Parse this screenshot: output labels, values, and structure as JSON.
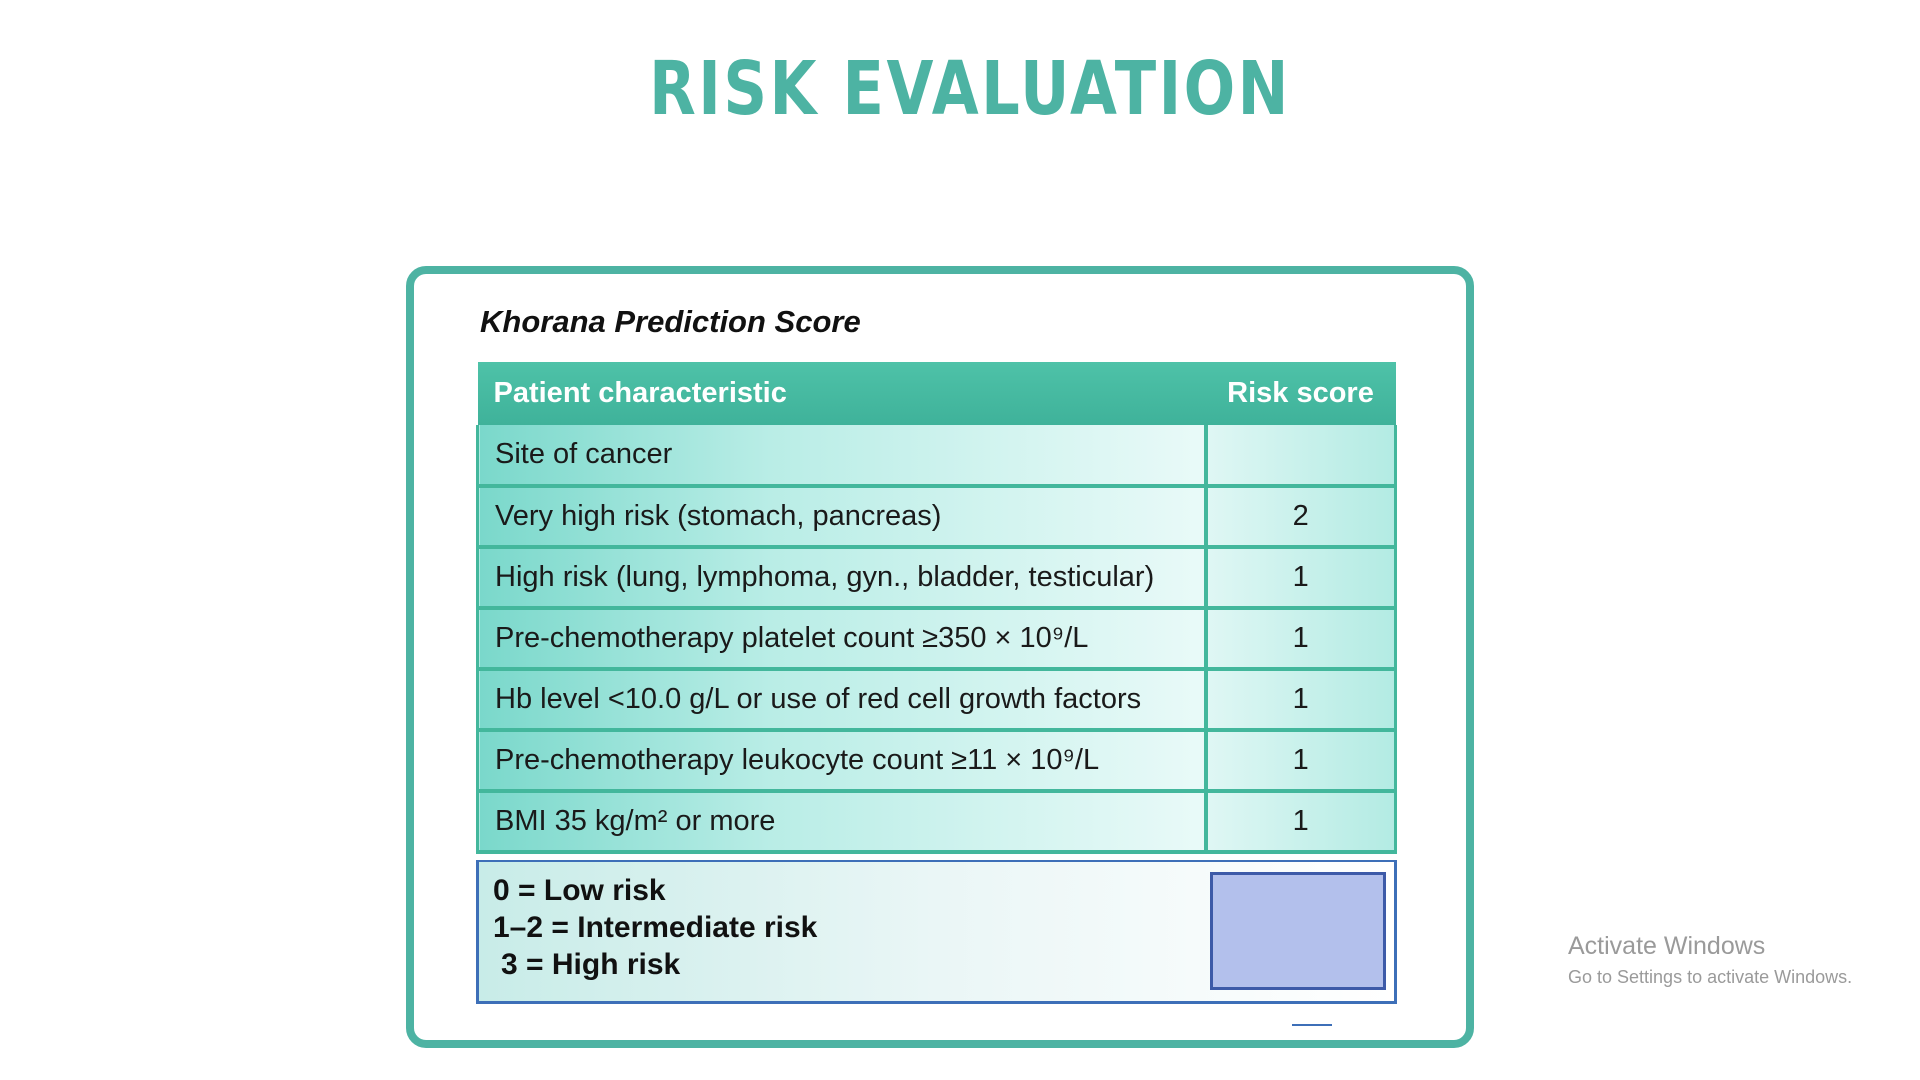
{
  "slide": {
    "title": "RISK EVALUATION"
  },
  "figure": {
    "heading": "Khorana Prediction Score",
    "columns": {
      "characteristic": "Patient characteristic",
      "score": "Risk score"
    },
    "rows": [
      {
        "characteristic": "Site of cancer",
        "score": ""
      },
      {
        "characteristic": "Very high risk (stomach, pancreas)",
        "score": "2"
      },
      {
        "characteristic": "High risk (lung, lymphoma, gyn., bladder, testicular)",
        "score": "1"
      },
      {
        "characteristic": "Pre-chemotherapy platelet count ≥350 × 10⁹/L",
        "score": "1"
      },
      {
        "characteristic": "Hb level <10.0 g/L or use of red cell growth factors",
        "score": "1"
      },
      {
        "characteristic": "Pre-chemotherapy leukocyte count ≥11 × 10⁹/L",
        "score": "1"
      },
      {
        "characteristic": "BMI 35 kg/m² or more",
        "score": "1"
      }
    ],
    "legend": [
      "0 = Low risk",
      "1–2 = Intermediate risk",
      "3 = High risk"
    ]
  },
  "watermark": {
    "line1": "Activate Windows",
    "line2": "Go to Settings to activate Windows."
  },
  "colors": {
    "accent": "#4db3a3",
    "header": "#43b79c",
    "legend_box": "#b3c0ec"
  }
}
